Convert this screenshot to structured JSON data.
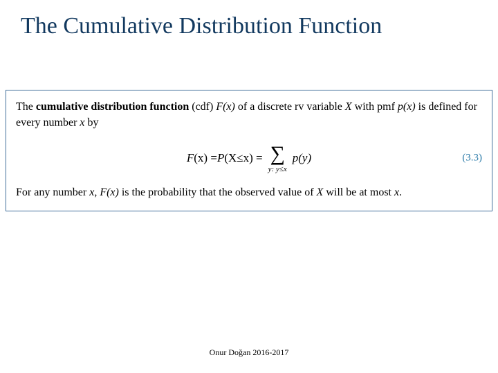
{
  "colors": {
    "title": "#12395f",
    "body_text": "#000000",
    "box_border": "#3f6d99",
    "eq_number": "#2a7aa8",
    "background": "#ffffff"
  },
  "fonts": {
    "title_family": "Times New Roman",
    "title_size_pt": 34,
    "body_size_pt": 16,
    "footer_size_pt": 12
  },
  "title": "The Cumulative Distribution Function",
  "definition": {
    "line1_pre": "The ",
    "line1_bold": "cumulative distribution function ",
    "line1_post_a": "(cdf) ",
    "line1_Fx": "F(x)",
    "line1_mid": " of a discrete rv variable ",
    "line1_X": "X",
    "line1_end": " with pmf ",
    "line1_px": "p(x)",
    "line1_tail": " is defined for every number ",
    "line1_xvar": "x",
    "line1_by": " by",
    "equation": {
      "lhs_F": "F",
      "lhs_x": "(x) = ",
      "P_open": "P",
      "P_inner_a": "(X ",
      "leq": "≤",
      "P_inner_b": " x) = ",
      "sigma": "∑",
      "under": "y: y≤x",
      "py": "p(y)",
      "number": "(3.3)"
    },
    "line2_a": "For any number ",
    "line2_x": "x",
    "line2_b": ", ",
    "line2_Fx": "F(x)",
    "line2_c": " is the probability that the observed value of ",
    "line2_X": "X",
    "line2_d": " will be at most ",
    "line2_x2": "x",
    "line2_e": "."
  },
  "footer": "Onur Doğan 2016-2017"
}
